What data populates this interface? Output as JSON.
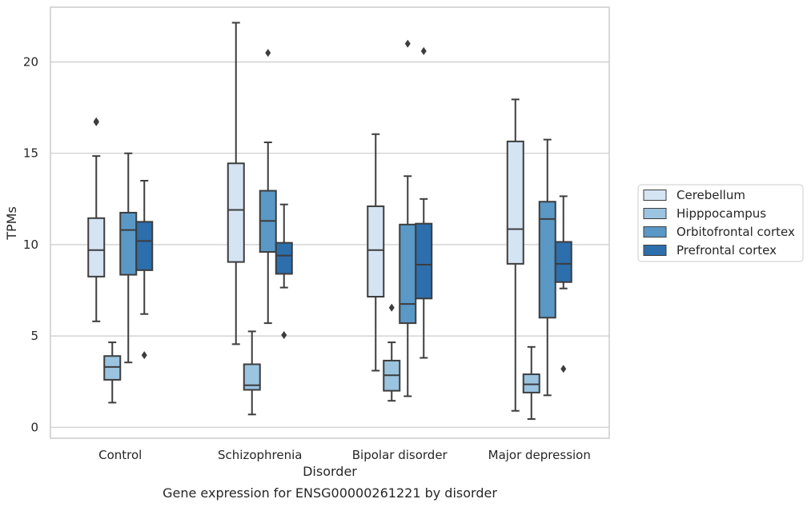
{
  "chart_data": {
    "type": "box",
    "title": "Gene expression for ENSG00000261221 by disorder",
    "xlabel": "Disorder",
    "ylabel": "TPMs",
    "ylim": [
      -0.6,
      23.0
    ],
    "yticks": [
      0,
      5,
      10,
      15,
      20
    ],
    "grid": true,
    "legend_position": "right",
    "categories": [
      "Control",
      "Schizophrenia",
      "Bipolar disorder",
      "Major depression"
    ],
    "series": [
      {
        "name": "Cerebellum",
        "color": "#d5e4f3",
        "boxes": [
          {
            "whislo": 5.8,
            "q1": 8.25,
            "med": 9.7,
            "q3": 11.45,
            "whishi": 14.85,
            "fliers": [
              16.7,
              16.75
            ]
          },
          {
            "whislo": 4.55,
            "q1": 9.05,
            "med": 11.9,
            "q3": 14.45,
            "whishi": 22.15,
            "fliers": []
          },
          {
            "whislo": 3.1,
            "q1": 7.15,
            "med": 9.7,
            "q3": 12.1,
            "whishi": 16.05,
            "fliers": []
          },
          {
            "whislo": 0.9,
            "q1": 8.95,
            "med": 10.85,
            "q3": 15.65,
            "whishi": 17.95,
            "fliers": []
          }
        ]
      },
      {
        "name": "Hipppocampus",
        "color": "#9ac4e0",
        "boxes": [
          {
            "whislo": 1.35,
            "q1": 2.6,
            "med": 3.3,
            "q3": 3.9,
            "whishi": 4.65,
            "fliers": []
          },
          {
            "whislo": 0.7,
            "q1": 2.05,
            "med": 2.3,
            "q3": 3.45,
            "whishi": 5.25,
            "fliers": []
          },
          {
            "whislo": 1.45,
            "q1": 2.0,
            "med": 2.85,
            "q3": 3.65,
            "whishi": 4.65,
            "fliers": [
              6.55
            ]
          },
          {
            "whislo": 0.45,
            "q1": 1.9,
            "med": 2.35,
            "q3": 2.9,
            "whishi": 4.4,
            "fliers": []
          }
        ]
      },
      {
        "name": "Orbitofrontal cortex",
        "color": "#5a98c6",
        "boxes": [
          {
            "whislo": 3.55,
            "q1": 8.35,
            "med": 10.8,
            "q3": 11.75,
            "whishi": 15.0,
            "fliers": []
          },
          {
            "whislo": 5.7,
            "q1": 9.6,
            "med": 11.3,
            "q3": 12.95,
            "whishi": 15.6,
            "fliers": [
              20.5
            ]
          },
          {
            "whislo": 1.7,
            "q1": 5.7,
            "med": 6.75,
            "q3": 11.1,
            "whishi": 13.75,
            "fliers": [
              21.0
            ]
          },
          {
            "whislo": 1.75,
            "q1": 6.0,
            "med": 11.4,
            "q3": 12.35,
            "whishi": 15.75,
            "fliers": []
          }
        ]
      },
      {
        "name": "Prefrontal cortex",
        "color": "#2d6eac",
        "boxes": [
          {
            "whislo": 6.2,
            "q1": 8.6,
            "med": 10.2,
            "q3": 11.25,
            "whishi": 13.5,
            "fliers": [
              3.95
            ]
          },
          {
            "whislo": 7.65,
            "q1": 8.4,
            "med": 9.4,
            "q3": 10.1,
            "whishi": 12.2,
            "fliers": [
              5.05
            ]
          },
          {
            "whislo": 3.8,
            "q1": 7.05,
            "med": 8.9,
            "q3": 11.15,
            "whishi": 12.5,
            "fliers": [
              20.6
            ]
          },
          {
            "whislo": 7.6,
            "q1": 7.95,
            "med": 8.95,
            "q3": 10.15,
            "whishi": 12.65,
            "fliers": [
              3.2
            ]
          }
        ]
      }
    ]
  }
}
